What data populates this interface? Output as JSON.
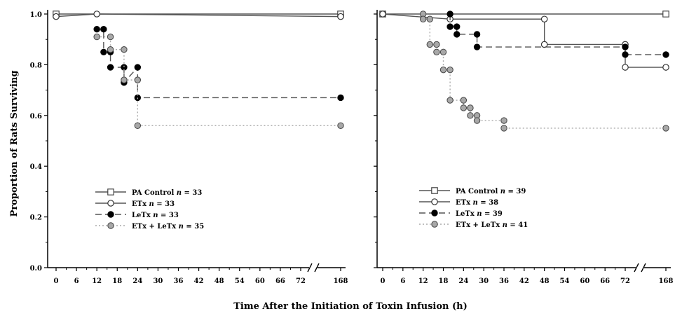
{
  "figure": {
    "ylabel": "Proportion of Rats Surviving",
    "xlabel": "Time After the Initiation of Toxin Infusion (h)"
  },
  "chart_data": [
    {
      "type": "line",
      "xlabel": "Time After the Initiation of Toxin Infusion (h)",
      "ylabel": "Proportion of Rats Surviving",
      "xticks": [
        "0",
        "6",
        "12",
        "18",
        "24",
        "30",
        "36",
        "42",
        "48",
        "54",
        "60",
        "66",
        "72",
        "168"
      ],
      "yticks": [
        "0.0",
        "0.2",
        "0.4",
        "0.6",
        "0.8",
        "1.0"
      ],
      "ylim": [
        0,
        1
      ],
      "axis_break": "between 72 and 168",
      "grid": false,
      "legend_position": "bottom-left",
      "series": [
        {
          "name": "PA Control",
          "n_label": "n = 33",
          "line": "solid",
          "marker": "open-square",
          "color": "#555555",
          "points": [
            [
              0,
              1.0
            ],
            [
              168,
              1.0
            ]
          ]
        },
        {
          "name": "ETx",
          "n_label": "n = 33",
          "line": "solid",
          "marker": "open-circle",
          "color": "#555555",
          "points": [
            [
              0,
              0.99
            ],
            [
              12,
              1.0
            ],
            [
              168,
              0.99
            ]
          ]
        },
        {
          "name": "LeTx",
          "n_label": "n = 33",
          "line": "dashed",
          "marker": "filled-black-circle",
          "color": "#555555",
          "points": [
            [
              12,
              0.94
            ],
            [
              14,
              0.94
            ],
            [
              14,
              0.85
            ],
            [
              16,
              0.85
            ],
            [
              16,
              0.79
            ],
            [
              20,
              0.79
            ],
            [
              20,
              0.73
            ],
            [
              24,
              0.79
            ],
            [
              24,
              0.67
            ],
            [
              168,
              0.67
            ]
          ]
        },
        {
          "name": "ETx + LeTx",
          "n_label": "n = 35",
          "line": "dotted",
          "marker": "filled-grey-circle",
          "color": "#aaaaaa",
          "points": [
            [
              12,
              0.91
            ],
            [
              16,
              0.91
            ],
            [
              16,
              0.86
            ],
            [
              20,
              0.86
            ],
            [
              20,
              0.74
            ],
            [
              24,
              0.74
            ],
            [
              24,
              0.56
            ],
            [
              168,
              0.56
            ]
          ]
        }
      ]
    },
    {
      "type": "line",
      "xticks": [
        "0",
        "6",
        "12",
        "18",
        "24",
        "30",
        "36",
        "42",
        "48",
        "54",
        "60",
        "66",
        "72",
        "168"
      ],
      "yticks": [
        "0.0",
        "0.2",
        "0.4",
        "0.6",
        "0.8",
        "1.0"
      ],
      "ylim": [
        0,
        1
      ],
      "axis_break": "between 72 and 168",
      "grid": false,
      "legend_position": "bottom-left",
      "series": [
        {
          "name": "PA Control",
          "n_label": "n = 39",
          "line": "solid",
          "marker": "open-square",
          "color": "#555555",
          "points": [
            [
              0,
              1.0
            ],
            [
              168,
              1.0
            ]
          ]
        },
        {
          "name": "ETx",
          "n_label": "n = 38",
          "line": "solid",
          "marker": "open-circle",
          "color": "#555555",
          "points": [
            [
              0,
              1.0
            ],
            [
              20,
              0.98
            ],
            [
              48,
              0.98
            ],
            [
              48,
              0.88
            ],
            [
              72,
              0.88
            ],
            [
              72,
              0.79
            ],
            [
              168,
              0.79
            ]
          ]
        },
        {
          "name": "LeTx",
          "n_label": "n = 39",
          "line": "dashed",
          "marker": "filled-black-circle",
          "color": "#555555",
          "points": [
            [
              20,
              1.0
            ],
            [
              20,
              0.95
            ],
            [
              22,
              0.95
            ],
            [
              22,
              0.92
            ],
            [
              28,
              0.92
            ],
            [
              28,
              0.87
            ],
            [
              72,
              0.87
            ],
            [
              72,
              0.84
            ],
            [
              168,
              0.84
            ]
          ]
        },
        {
          "name": "ETx + LeTx",
          "n_label": "n = 41",
          "line": "dotted",
          "marker": "filled-grey-circle",
          "color": "#aaaaaa",
          "points": [
            [
              12,
              1.0
            ],
            [
              12,
              0.98
            ],
            [
              14,
              0.98
            ],
            [
              14,
              0.88
            ],
            [
              16,
              0.88
            ],
            [
              16,
              0.85
            ],
            [
              18,
              0.85
            ],
            [
              18,
              0.78
            ],
            [
              20,
              0.78
            ],
            [
              20,
              0.66
            ],
            [
              24,
              0.66
            ],
            [
              24,
              0.63
            ],
            [
              26,
              0.63
            ],
            [
              26,
              0.6
            ],
            [
              28,
              0.6
            ],
            [
              28,
              0.58
            ],
            [
              36,
              0.58
            ],
            [
              36,
              0.55
            ],
            [
              168,
              0.55
            ]
          ]
        }
      ]
    }
  ]
}
